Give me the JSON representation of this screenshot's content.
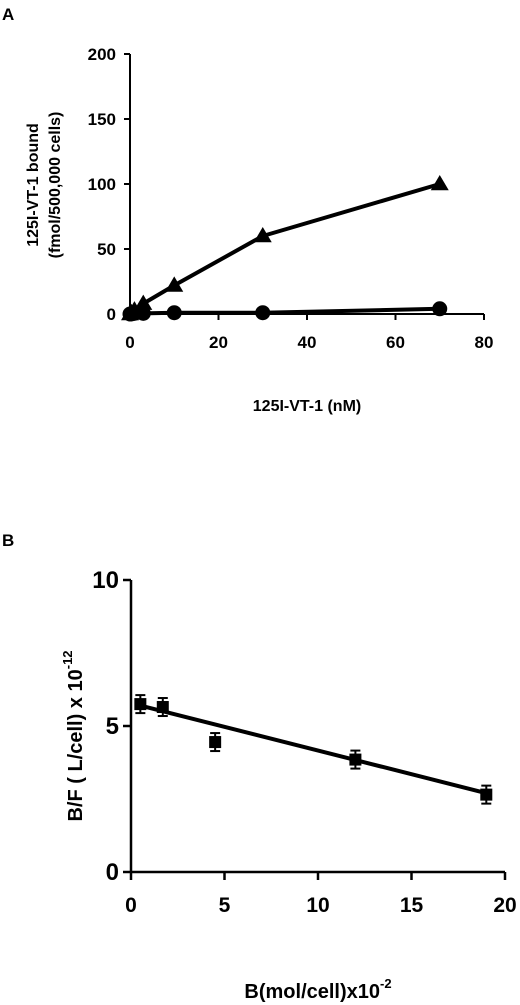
{
  "chart_data": [
    {
      "panel": "A",
      "type": "line",
      "xlabel": "125I-VT-1 (nM)",
      "ylabel": "125I-VT-1 bound",
      "ylabel2": "(fmol/500,000 cells)",
      "xlim": [
        0,
        80
      ],
      "ylim": [
        0,
        200
      ],
      "xticks": [
        0,
        20,
        40,
        60,
        80
      ],
      "yticks": [
        0,
        50,
        100,
        150,
        200
      ],
      "series": [
        {
          "marker": "triangle",
          "x": [
            0,
            0.3,
            1,
            3,
            10,
            30,
            70
          ],
          "y": [
            0,
            1,
            3,
            8,
            22,
            60,
            100
          ]
        },
        {
          "marker": "circle",
          "x": [
            0,
            0.3,
            1,
            3,
            10,
            30,
            70
          ],
          "y": [
            0,
            0,
            0.5,
            0.5,
            1,
            1,
            4
          ]
        }
      ]
    },
    {
      "panel": "B",
      "type": "scatter",
      "xlabel": "B(mol/cell)x10",
      "xlabel_exp": "-2",
      "ylabel": "B/F ( L/cell) x 10",
      "ylabel_exp": "-12",
      "xlim": [
        0,
        20
      ],
      "ylim": [
        0,
        10
      ],
      "xticks": [
        0,
        5,
        10,
        15,
        20
      ],
      "yticks": [
        0,
        5,
        10
      ],
      "points": [
        {
          "x": 0.5,
          "y": 5.75
        },
        {
          "x": 1.7,
          "y": 5.65
        },
        {
          "x": 4.5,
          "y": 4.45
        },
        {
          "x": 12,
          "y": 3.85
        },
        {
          "x": 19,
          "y": 2.65
        }
      ],
      "fit_line": {
        "x": [
          0.5,
          19
        ],
        "y": [
          5.7,
          2.7
        ]
      }
    }
  ]
}
